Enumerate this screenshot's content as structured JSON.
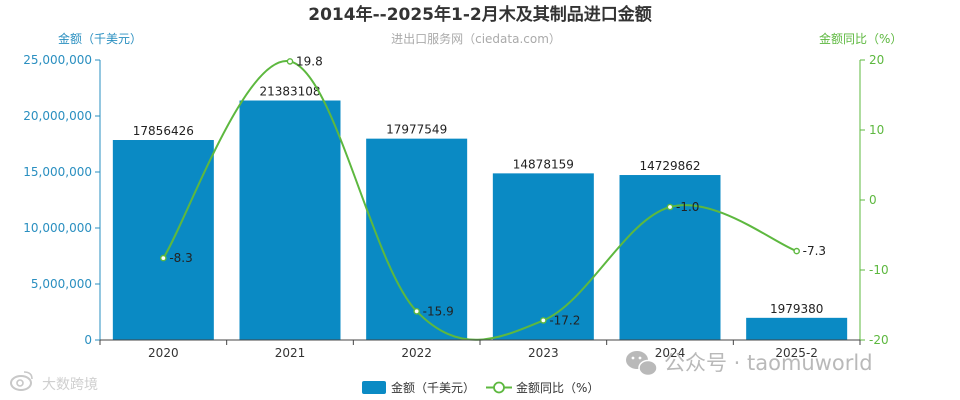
{
  "chart_data": {
    "type": "bar",
    "title": "2014年--2025年1-2月木及其制品进口金额",
    "subtitle": "进出口服务网（ciedata.com）",
    "categories": [
      "2020",
      "2021",
      "2022",
      "2023",
      "2024",
      "2025-2"
    ],
    "series": [
      {
        "name": "金额（千美元）",
        "type": "bar",
        "axis": "left",
        "color": "#0a8ac4",
        "values": [
          17856426,
          21383108,
          17977549,
          14878159,
          14729862,
          1979380
        ]
      },
      {
        "name": "金额同比（%）",
        "type": "line",
        "smooth": true,
        "axis": "right",
        "color": "#5db83f",
        "values": [
          -8.3,
          19.8,
          -15.9,
          -17.2,
          -1.0,
          -7.3
        ]
      }
    ],
    "left_axis": {
      "label": "金额（千美元）",
      "ticks": [
        "0",
        "5,000,000",
        "10,000,000",
        "15,000,000",
        "20,000,000",
        "25,000,000"
      ],
      "ylim": [
        0,
        25000000
      ],
      "color": "#2a8fc0"
    },
    "right_axis": {
      "label": "金额同比（%）",
      "ticks": [
        "-20",
        "-10",
        "0",
        "10",
        "20"
      ],
      "ylim": [
        -20,
        20
      ],
      "color": "#5db83f"
    },
    "grid": false,
    "legend_position": "bottom-center"
  },
  "watermarks": {
    "bottom_left": "大数跨境",
    "bottom_right": "公众号 · taomuworld"
  }
}
